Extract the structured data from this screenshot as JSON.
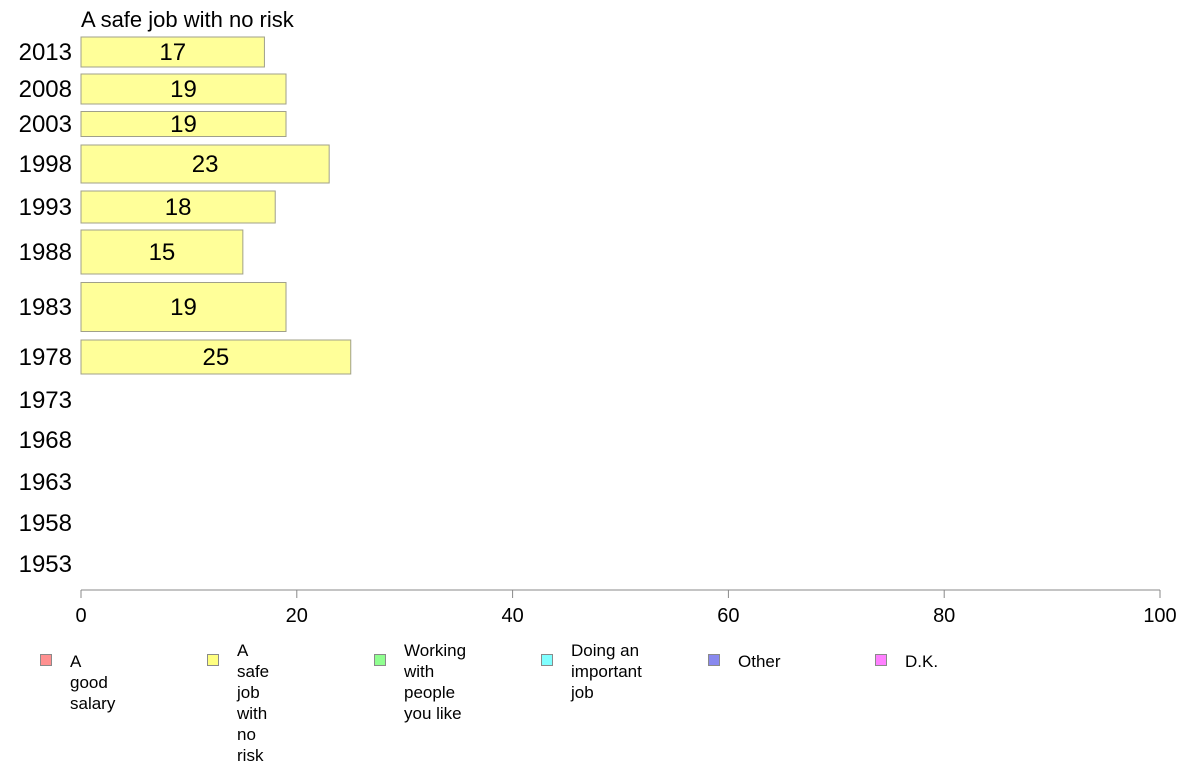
{
  "chart_data": {
    "type": "bar",
    "orientation": "horizontal",
    "title": "A safe job with no risk",
    "categories": [
      "2013",
      "2008",
      "2003",
      "1998",
      "1993",
      "1988",
      "1983",
      "1978",
      "1973",
      "1968",
      "1963",
      "1958",
      "1953"
    ],
    "series": [
      {
        "name": "A safe job with no risk",
        "values": [
          17,
          19,
          19,
          23,
          18,
          15,
          19,
          25,
          null,
          null,
          null,
          null,
          null
        ]
      }
    ],
    "xlim": [
      0,
      100
    ],
    "xticks": [
      0,
      20,
      40,
      60,
      80,
      100
    ],
    "xlabel": "",
    "ylabel": "",
    "grid": false,
    "legend_position": "bottom"
  },
  "colors": {
    "bar_fill": "#ffff99",
    "bar_stroke": "#a0a08a",
    "axis": "#888888"
  },
  "legend": [
    {
      "label": "A good salary",
      "color": "#ff9090"
    },
    {
      "label": "A safe job\nwith no risk",
      "color": "#ffff80"
    },
    {
      "label": "Working with\npeople you like",
      "color": "#90ff90"
    },
    {
      "label": "Doing an\nimportant job",
      "color": "#80ffff"
    },
    {
      "label": "Other",
      "color": "#8888ee"
    },
    {
      "label": "D.K.",
      "color": "#ff80ff"
    }
  ]
}
